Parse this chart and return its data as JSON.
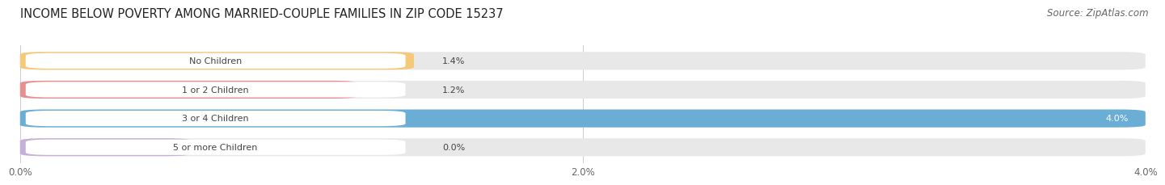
{
  "title": "INCOME BELOW POVERTY AMONG MARRIED-COUPLE FAMILIES IN ZIP CODE 15237",
  "source": "Source: ZipAtlas.com",
  "categories": [
    "No Children",
    "1 or 2 Children",
    "3 or 4 Children",
    "5 or more Children"
  ],
  "values": [
    1.4,
    1.2,
    4.0,
    0.0
  ],
  "bar_colors": [
    "#f5c97a",
    "#e89090",
    "#6aaed6",
    "#c4b0d8"
  ],
  "bar_bg_color": "#e8e8e8",
  "xlim": [
    0,
    4.0
  ],
  "xticks": [
    0.0,
    2.0,
    4.0
  ],
  "xticklabels": [
    "0.0%",
    "2.0%",
    "4.0%"
  ],
  "title_fontsize": 10.5,
  "source_fontsize": 8.5,
  "label_fontsize": 8.0,
  "tick_fontsize": 8.5,
  "background_color": "#ffffff",
  "pill_color": "#ffffff",
  "pill_text_color": "#444444",
  "value_text_color": "#444444"
}
